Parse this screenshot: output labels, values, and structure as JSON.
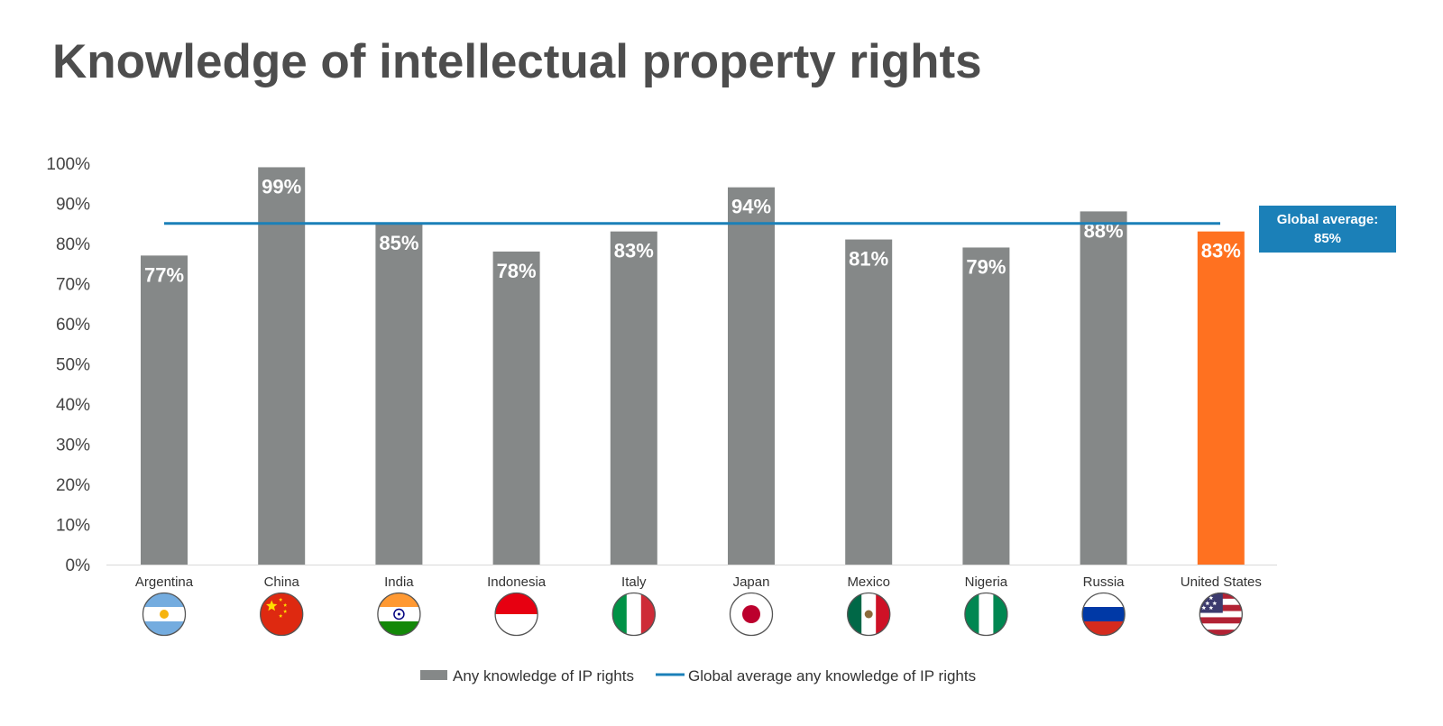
{
  "title": "Knowledge of intellectual property rights",
  "chart_data": {
    "type": "bar",
    "title": "Knowledge of intellectual property rights",
    "xlabel": "",
    "ylabel": "",
    "ylim": [
      0,
      100
    ],
    "yticks": [
      "0%",
      "10%",
      "20%",
      "30%",
      "40%",
      "50%",
      "60%",
      "70%",
      "80%",
      "90%",
      "100%"
    ],
    "categories": [
      "Argentina",
      "China",
      "India",
      "Indonesia",
      "Italy",
      "Japan",
      "Mexico",
      "Nigeria",
      "Russia",
      "United States"
    ],
    "series": [
      {
        "name": "Any knowledge of IP rights",
        "type": "bar",
        "values": [
          77,
          99,
          85,
          78,
          83,
          94,
          81,
          79,
          88,
          83
        ],
        "labels": [
          "77%",
          "99%",
          "85%",
          "78%",
          "83%",
          "94%",
          "81%",
          "79%",
          "88%",
          "83%"
        ],
        "color": "#858888",
        "highlight_category": "United States",
        "highlight_color": "#ff7120"
      },
      {
        "name": "Global average any knowledge of IP rights",
        "type": "line",
        "value": 85,
        "color": "#1b80b8"
      }
    ],
    "annotation": {
      "line1": "Global average:",
      "line2": "85%"
    },
    "flags": [
      "argentina-flag-icon",
      "china-flag-icon",
      "india-flag-icon",
      "indonesia-flag-icon",
      "italy-flag-icon",
      "japan-flag-icon",
      "mexico-flag-icon",
      "nigeria-flag-icon",
      "russia-flag-icon",
      "united-states-flag-icon"
    ],
    "grid": false,
    "legend_position": "bottom"
  }
}
